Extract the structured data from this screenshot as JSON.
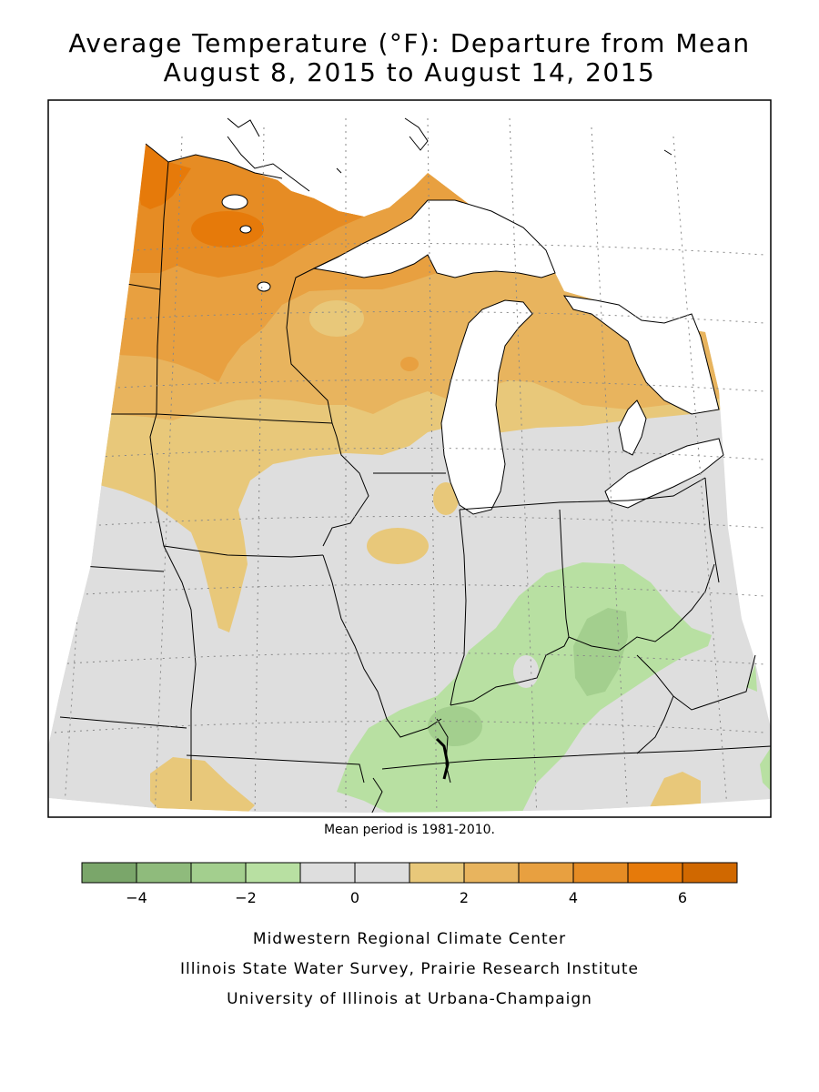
{
  "title_line1": "Average Temperature (°F): Departure from Mean",
  "title_line2": "August 8, 2015 to August 14, 2015",
  "mean_period_note": "Mean period is 1981-2010.",
  "legend": {
    "bins": [
      {
        "min": -5,
        "max": -4,
        "color": "#7aa66a"
      },
      {
        "min": -4,
        "max": -3,
        "color": "#8fbb7c"
      },
      {
        "min": -3,
        "max": -2,
        "color": "#a3cf8e"
      },
      {
        "min": -2,
        "max": -1,
        "color": "#b8e0a2"
      },
      {
        "min": -1,
        "max": 0,
        "color": "#dedede"
      },
      {
        "min": 0,
        "max": 1,
        "color": "#dedede"
      },
      {
        "min": 1,
        "max": 2,
        "color": "#e8c87a"
      },
      {
        "min": 2,
        "max": 3,
        "color": "#e8b45e"
      },
      {
        "min": 3,
        "max": 4,
        "color": "#e8a040"
      },
      {
        "min": 4,
        "max": 5,
        "color": "#e68c24"
      },
      {
        "min": 5,
        "max": 6,
        "color": "#e67a0a"
      },
      {
        "min": 6,
        "max": 7,
        "color": "#d06800"
      }
    ],
    "tick_labels": [
      "-4",
      "-2",
      "0",
      "2",
      "4",
      "6"
    ]
  },
  "credits": [
    "Midwestern Regional Climate Center",
    "Illinois State Water Survey, Prairie Research Institute",
    "University of Illinois at Urbana-Champaign"
  ]
}
